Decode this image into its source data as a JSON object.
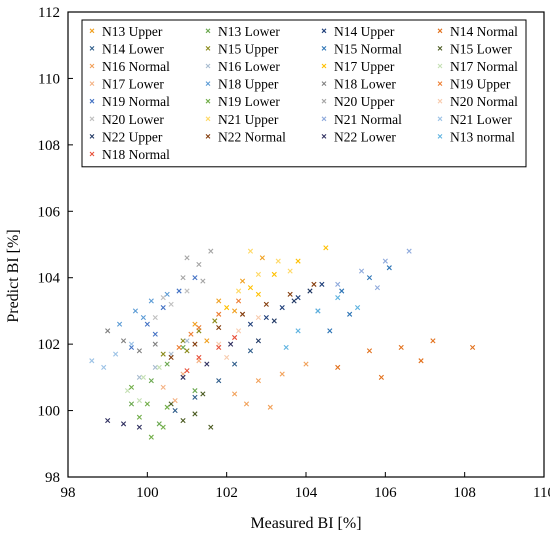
{
  "chart_data": {
    "type": "scatter",
    "xlabel": "Measured BI [%]",
    "ylabel": "Predict BI [%]",
    "xlim": [
      98,
      110
    ],
    "ylim": [
      98,
      112
    ],
    "xticks": [
      "98",
      "100",
      "102",
      "104",
      "106",
      "108",
      "110"
    ],
    "yticks": [
      "98",
      "100",
      "102",
      "104",
      "106",
      "108",
      "110",
      "112"
    ],
    "grid": false,
    "legend_position": "top-left, inside, 4 columns",
    "series": [
      {
        "name": "N13 Upper",
        "color": "#f0a020",
        "points": [
          [
            101.2,
            102.6
          ],
          [
            101.8,
            103.3
          ],
          [
            102.4,
            103.9
          ],
          [
            102.9,
            104.6
          ],
          [
            101.5,
            102.1
          ],
          [
            102.2,
            103.0
          ]
        ]
      },
      {
        "name": "N13 Lower",
        "color": "#6aa84f",
        "points": [
          [
            99.6,
            100.2
          ],
          [
            100.1,
            100.9
          ],
          [
            100.5,
            101.4
          ],
          [
            100.9,
            101.9
          ],
          [
            100.3,
            99.6
          ],
          [
            101.2,
            100.6
          ]
        ]
      },
      {
        "name": "N14 Upper",
        "color": "#1f3f7a",
        "points": [
          [
            103.0,
            102.8
          ],
          [
            103.8,
            103.4
          ],
          [
            104.4,
            103.8
          ],
          [
            103.4,
            103.1
          ],
          [
            102.6,
            102.6
          ]
        ]
      },
      {
        "name": "N14 Normal",
        "color": "#e2711d",
        "points": [
          [
            104.8,
            101.3
          ],
          [
            105.6,
            101.8
          ],
          [
            106.4,
            101.9
          ],
          [
            107.2,
            102.1
          ],
          [
            105.9,
            101.0
          ],
          [
            106.9,
            101.5
          ],
          [
            108.2,
            101.9
          ]
        ]
      },
      {
        "name": "N14 Lower",
        "color": "#2e5c8a",
        "points": [
          [
            101.2,
            100.4
          ],
          [
            101.8,
            100.9
          ],
          [
            102.2,
            101.4
          ],
          [
            102.6,
            101.8
          ],
          [
            100.7,
            100.0
          ]
        ]
      },
      {
        "name": "N15 Upper",
        "color": "#8a8a1a",
        "points": [
          [
            100.4,
            101.7
          ],
          [
            100.9,
            102.1
          ],
          [
            101.3,
            102.4
          ],
          [
            101.7,
            102.7
          ],
          [
            101.0,
            101.8
          ]
        ]
      },
      {
        "name": "N15 Normal",
        "color": "#2e75b6",
        "points": [
          [
            104.3,
            103.0
          ],
          [
            104.9,
            103.6
          ],
          [
            105.6,
            104.0
          ],
          [
            106.1,
            104.3
          ],
          [
            104.6,
            102.4
          ],
          [
            105.1,
            102.9
          ]
        ]
      },
      {
        "name": "N15 Lower",
        "color": "#4a5a20",
        "points": [
          [
            100.6,
            100.2
          ],
          [
            101.2,
            99.9
          ],
          [
            101.6,
            99.5
          ],
          [
            100.9,
            99.7
          ],
          [
            101.4,
            100.5
          ]
        ]
      },
      {
        "name": "N16 Normal",
        "color": "#f2a15a",
        "points": [
          [
            102.2,
            100.5
          ],
          [
            102.8,
            100.9
          ],
          [
            103.4,
            101.1
          ],
          [
            104.0,
            101.4
          ],
          [
            102.5,
            100.2
          ],
          [
            103.1,
            100.1
          ]
        ]
      },
      {
        "name": "N16 Lower",
        "color": "#a9bcd0",
        "points": [
          [
            100.2,
            101.3
          ],
          [
            100.6,
            101.7
          ],
          [
            101.0,
            102.1
          ],
          [
            99.8,
            101.0
          ]
        ]
      },
      {
        "name": "N17 Upper",
        "color": "#ffc000",
        "points": [
          [
            102.0,
            103.1
          ],
          [
            102.6,
            103.7
          ],
          [
            103.2,
            104.1
          ],
          [
            103.8,
            104.5
          ],
          [
            104.5,
            104.9
          ],
          [
            102.8,
            103.5
          ]
        ]
      },
      {
        "name": "N17 Normal",
        "color": "#c5e0b4",
        "points": [
          [
            99.5,
            100.6
          ],
          [
            99.9,
            101.0
          ],
          [
            100.3,
            101.3
          ],
          [
            99.8,
            100.3
          ]
        ]
      },
      {
        "name": "N17 Lower",
        "color": "#f4b183",
        "points": [
          [
            100.4,
            100.7
          ],
          [
            100.9,
            101.1
          ],
          [
            101.3,
            101.5
          ],
          [
            100.7,
            100.3
          ]
        ]
      },
      {
        "name": "N18 Upper",
        "color": "#5b9bd5",
        "points": [
          [
            99.3,
            102.6
          ],
          [
            99.7,
            103.0
          ],
          [
            100.1,
            103.3
          ],
          [
            100.5,
            103.5
          ],
          [
            99.9,
            102.8
          ]
        ]
      },
      {
        "name": "N18 Lower",
        "color": "#7f7f7f",
        "points": [
          [
            99.0,
            102.4
          ],
          [
            99.4,
            102.1
          ],
          [
            99.8,
            101.8
          ],
          [
            100.2,
            102.0
          ]
        ]
      },
      {
        "name": "N19 Upper",
        "color": "#ed7d31",
        "points": [
          [
            100.8,
            101.9
          ],
          [
            101.3,
            102.5
          ],
          [
            101.8,
            102.9
          ],
          [
            102.3,
            103.3
          ],
          [
            101.1,
            102.3
          ]
        ]
      },
      {
        "name": "N19 Normal",
        "color": "#4472c4",
        "points": [
          [
            99.6,
            101.9
          ],
          [
            100.0,
            102.6
          ],
          [
            100.4,
            103.1
          ],
          [
            100.8,
            103.6
          ],
          [
            101.2,
            104.0
          ],
          [
            100.2,
            102.3
          ]
        ]
      },
      {
        "name": "N19 Lower",
        "color": "#70ad47",
        "points": [
          [
            99.6,
            100.7
          ],
          [
            100.0,
            100.2
          ],
          [
            100.4,
            99.5
          ],
          [
            100.1,
            99.2
          ],
          [
            99.8,
            99.8
          ],
          [
            100.5,
            100.1
          ]
        ]
      },
      {
        "name": "N20 Upper",
        "color": "#a5a5a5",
        "points": [
          [
            100.9,
            104.0
          ],
          [
            101.3,
            104.4
          ],
          [
            101.6,
            104.8
          ],
          [
            101.0,
            104.6
          ],
          [
            101.4,
            103.9
          ]
        ]
      },
      {
        "name": "N20 Normal",
        "color": "#f8cbad",
        "points": [
          [
            101.8,
            102.0
          ],
          [
            102.3,
            102.4
          ],
          [
            102.8,
            102.8
          ],
          [
            102.0,
            101.6
          ]
        ]
      },
      {
        "name": "N20 Lower",
        "color": "#bfbfbf",
        "points": [
          [
            100.2,
            102.8
          ],
          [
            100.6,
            103.2
          ],
          [
            101.0,
            103.6
          ],
          [
            100.4,
            103.4
          ]
        ]
      },
      {
        "name": "N21 Upper",
        "color": "#ffd966",
        "points": [
          [
            102.3,
            103.6
          ],
          [
            102.8,
            104.1
          ],
          [
            103.3,
            104.5
          ],
          [
            102.6,
            104.8
          ],
          [
            103.6,
            104.2
          ]
        ]
      },
      {
        "name": "N21 Normal",
        "color": "#8faadc",
        "points": [
          [
            104.8,
            103.8
          ],
          [
            105.4,
            104.2
          ],
          [
            106.0,
            104.5
          ],
          [
            106.6,
            104.8
          ],
          [
            105.8,
            103.7
          ]
        ]
      },
      {
        "name": "N21 Lower",
        "color": "#9dc3e6",
        "points": [
          [
            98.6,
            101.5
          ],
          [
            99.2,
            101.7
          ],
          [
            99.6,
            102.0
          ],
          [
            98.9,
            101.3
          ]
        ]
      },
      {
        "name": "N22 Upper",
        "color": "#203864",
        "points": [
          [
            103.2,
            102.7
          ],
          [
            103.7,
            103.3
          ],
          [
            104.1,
            103.6
          ],
          [
            102.8,
            102.1
          ]
        ]
      },
      {
        "name": "N22 Normal",
        "color": "#843c0c",
        "points": [
          [
            100.6,
            101.6
          ],
          [
            101.2,
            102.0
          ],
          [
            101.8,
            102.5
          ],
          [
            102.4,
            102.9
          ],
          [
            103.0,
            103.2
          ],
          [
            103.6,
            103.5
          ],
          [
            104.2,
            103.8
          ]
        ]
      },
      {
        "name": "N22 Lower",
        "color": "#2f2f5f",
        "points": [
          [
            99.0,
            99.7
          ],
          [
            99.4,
            99.6
          ],
          [
            99.8,
            99.5
          ],
          [
            100.9,
            101.0
          ],
          [
            101.5,
            101.4
          ],
          [
            102.1,
            102.0
          ]
        ]
      },
      {
        "name": "N13 normal",
        "color": "#5fb3e0",
        "points": [
          [
            103.8,
            102.4
          ],
          [
            104.3,
            103.0
          ],
          [
            104.8,
            103.4
          ],
          [
            105.3,
            103.1
          ],
          [
            103.5,
            101.9
          ]
        ]
      },
      {
        "name": "N18 Normal",
        "color": "#e8503a",
        "points": [
          [
            101.3,
            101.6
          ],
          [
            101.8,
            101.9
          ],
          [
            102.2,
            102.2
          ],
          [
            101.0,
            101.2
          ]
        ]
      }
    ]
  }
}
